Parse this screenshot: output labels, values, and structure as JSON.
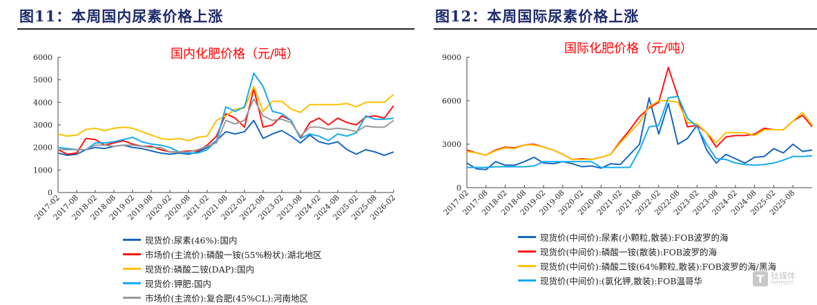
{
  "figures": [
    {
      "title": "图11：本周国内尿素价格上涨"
    },
    {
      "title": "图12：本周国际尿素价格上涨"
    }
  ],
  "watermark": {
    "logo": "T",
    "name": "钛媒体",
    "sub": "TMTPOST"
  },
  "chart_data": [
    {
      "type": "line",
      "title": "国内化肥价格（元/吨）",
      "ylim": [
        0,
        6000
      ],
      "yticks": [
        0,
        1000,
        2000,
        3000,
        4000,
        5000,
        6000
      ],
      "xticks": [
        "2017-02",
        "2017-08",
        "2018-02",
        "2018-08",
        "2019-02",
        "2019-08",
        "2020-02",
        "2020-08",
        "2021-02",
        "2021-08",
        "2022-02",
        "2022-08",
        "2023-02",
        "2023-08",
        "2024-02",
        "2024-08",
        "2025-02",
        "2025-08",
        "2026-02"
      ],
      "xlim": [
        "2017-02",
        "2026-02"
      ],
      "grid": false,
      "legend_placement": "bottom",
      "x": [
        "2017-02",
        "2017-05",
        "2017-08",
        "2017-11",
        "2018-02",
        "2018-05",
        "2018-08",
        "2018-11",
        "2019-02",
        "2019-05",
        "2019-08",
        "2019-11",
        "2020-02",
        "2020-05",
        "2020-08",
        "2020-11",
        "2021-02",
        "2021-05",
        "2021-08",
        "2021-11",
        "2022-02",
        "2022-05",
        "2022-08",
        "2022-11",
        "2023-02",
        "2023-05",
        "2023-08",
        "2023-11",
        "2024-02",
        "2024-05",
        "2024-08",
        "2024-11",
        "2025-02",
        "2025-05",
        "2025-08",
        "2025-11",
        "2026-02"
      ],
      "series": [
        {
          "name": "现货价:尿素(46%):国内",
          "color": "#1565c0",
          "values": [
            1750,
            1650,
            1700,
            1900,
            2000,
            1950,
            2050,
            2100,
            2000,
            1950,
            1850,
            1750,
            1700,
            1750,
            1700,
            1800,
            2000,
            2300,
            2700,
            2600,
            2700,
            3200,
            2400,
            2600,
            2750,
            2500,
            2200,
            2550,
            2250,
            2150,
            2250,
            1900,
            1700,
            1900,
            1800,
            1650,
            1800
          ]
        },
        {
          "name": "市场价(主流价):磷酸一铵(55%粉状):湖北地区",
          "color": "#ff1010",
          "values": [
            1900,
            1700,
            1750,
            2400,
            2350,
            2100,
            2200,
            2300,
            2150,
            2050,
            2050,
            1900,
            1800,
            1800,
            1850,
            1850,
            2100,
            2500,
            3500,
            3300,
            2900,
            4600,
            2900,
            3000,
            3400,
            3200,
            2400,
            3100,
            3300,
            3000,
            3300,
            3100,
            3000,
            3350,
            3400,
            3300,
            3850
          ]
        },
        {
          "name": "现货价:磷酸二铵(DAP):国内",
          "color": "#ffc000",
          "values": [
            2600,
            2500,
            2550,
            2800,
            2850,
            2750,
            2850,
            2900,
            2850,
            2700,
            2550,
            2400,
            2350,
            2400,
            2300,
            2450,
            2500,
            3200,
            3400,
            3700,
            3750,
            4700,
            3600,
            4050,
            4050,
            3700,
            3550,
            3900,
            3900,
            3900,
            3900,
            3950,
            3800,
            4000,
            4000,
            4000,
            4350
          ]
        },
        {
          "name": "现货价:钾肥:国内",
          "color": "#14aaf0",
          "values": [
            2000,
            1950,
            1900,
            1900,
            2200,
            2200,
            2250,
            2350,
            2450,
            2250,
            2150,
            2100,
            2000,
            1800,
            1750,
            1750,
            1900,
            2300,
            3800,
            3600,
            3800,
            5300,
            4700,
            3600,
            3500,
            3200,
            2400,
            2600,
            2500,
            2300,
            2600,
            2500,
            2650,
            3400,
            3250,
            3250,
            3300
          ]
        },
        {
          "name": "市场价(主流价):复合肥(45%CL):河南地区",
          "color": "#999999",
          "values": [
            1900,
            1900,
            1900,
            1900,
            2100,
            2100,
            2050,
            2100,
            2100,
            2050,
            2000,
            2000,
            1800,
            1800,
            1800,
            1900,
            2050,
            2200,
            3200,
            3050,
            3200,
            4150,
            3400,
            3200,
            3250,
            3100,
            2500,
            2900,
            2900,
            2800,
            2850,
            2800,
            2700,
            2950,
            2900,
            2900,
            3200
          ]
        }
      ]
    },
    {
      "type": "line",
      "title": "国际化肥价格（元/吨）",
      "ylim": [
        0,
        9000
      ],
      "yticks": [
        0,
        3000,
        6000,
        9000
      ],
      "xticks": [
        "2017-02",
        "2017-08",
        "2018-02",
        "2018-08",
        "2019-02",
        "2019-08",
        "2020-02",
        "2020-08",
        "2021-02",
        "2021-08",
        "2022-02",
        "2022-08",
        "2023-02",
        "2023-08",
        "2024-02",
        "2024-08",
        "2025-02",
        "2025-08"
      ],
      "xlim": [
        "2017-02",
        "2026-02"
      ],
      "grid": false,
      "legend_placement": "bottom",
      "x": [
        "2017-02",
        "2017-05",
        "2017-08",
        "2017-11",
        "2018-02",
        "2018-05",
        "2018-08",
        "2018-11",
        "2019-02",
        "2019-05",
        "2019-08",
        "2019-11",
        "2020-02",
        "2020-05",
        "2020-08",
        "2020-11",
        "2021-02",
        "2021-05",
        "2021-08",
        "2021-11",
        "2022-02",
        "2022-05",
        "2022-08",
        "2022-11",
        "2023-02",
        "2023-05",
        "2023-08",
        "2023-11",
        "2024-02",
        "2024-05",
        "2024-08",
        "2024-11",
        "2025-02",
        "2025-05",
        "2025-08",
        "2025-11",
        "2026-02"
      ],
      "series": [
        {
          "name": "现货价(中间价):尿素(小颗粒,散装):FOB波罗的海",
          "color": "#1565c0",
          "values": [
            1700,
            1300,
            1250,
            1800,
            1550,
            1550,
            1800,
            2100,
            1700,
            1650,
            1800,
            1650,
            1450,
            1500,
            1350,
            1650,
            1600,
            2300,
            3000,
            6200,
            3700,
            5800,
            3000,
            3400,
            4300,
            2600,
            1700,
            2300,
            2000,
            1700,
            2100,
            2150,
            2700,
            2400,
            3000,
            2500,
            2600
          ]
        },
        {
          "name": "现货价(中间价):磷酸一铵(散装):FOB波罗的海",
          "color": "#ff1010",
          "values": [
            2600,
            2400,
            2250,
            2600,
            2800,
            2750,
            2950,
            3000,
            2800,
            2600,
            2300,
            1950,
            2000,
            1950,
            2100,
            2300,
            3200,
            4000,
            4900,
            5500,
            5900,
            8300,
            6300,
            4200,
            4300,
            3800,
            2800,
            3500,
            3600,
            3600,
            3700,
            4100,
            4000,
            4000,
            4600,
            5000,
            4200
          ]
        },
        {
          "name": "现货价(中间价):磷酸二铵(64%颗粒,散装):FOB波罗的海/黑海",
          "color": "#ffc000",
          "values": [
            2500,
            2400,
            2250,
            2550,
            2750,
            2700,
            2950,
            2950,
            2800,
            2600,
            2300,
            1950,
            1950,
            1950,
            2100,
            2300,
            3100,
            3800,
            4500,
            5600,
            6000,
            6000,
            5900,
            4500,
            4400,
            3800,
            3100,
            3800,
            3800,
            3800,
            3600,
            4000,
            4000,
            4000,
            4600,
            5200,
            4300
          ]
        },
        {
          "name": "现货价(中间价):(氯化钾,散装):FOB温哥华",
          "color": "#14aaf0",
          "values": [
            1400,
            1400,
            1400,
            1450,
            1450,
            1450,
            1450,
            1500,
            1800,
            1800,
            1800,
            1800,
            1800,
            1800,
            1400,
            1400,
            1400,
            1400,
            2600,
            4200,
            4300,
            6200,
            6300,
            4800,
            4200,
            3000,
            2000,
            1950,
            1700,
            1600,
            1550,
            1600,
            1700,
            1900,
            2150,
            2150,
            2200
          ]
        }
      ]
    }
  ]
}
